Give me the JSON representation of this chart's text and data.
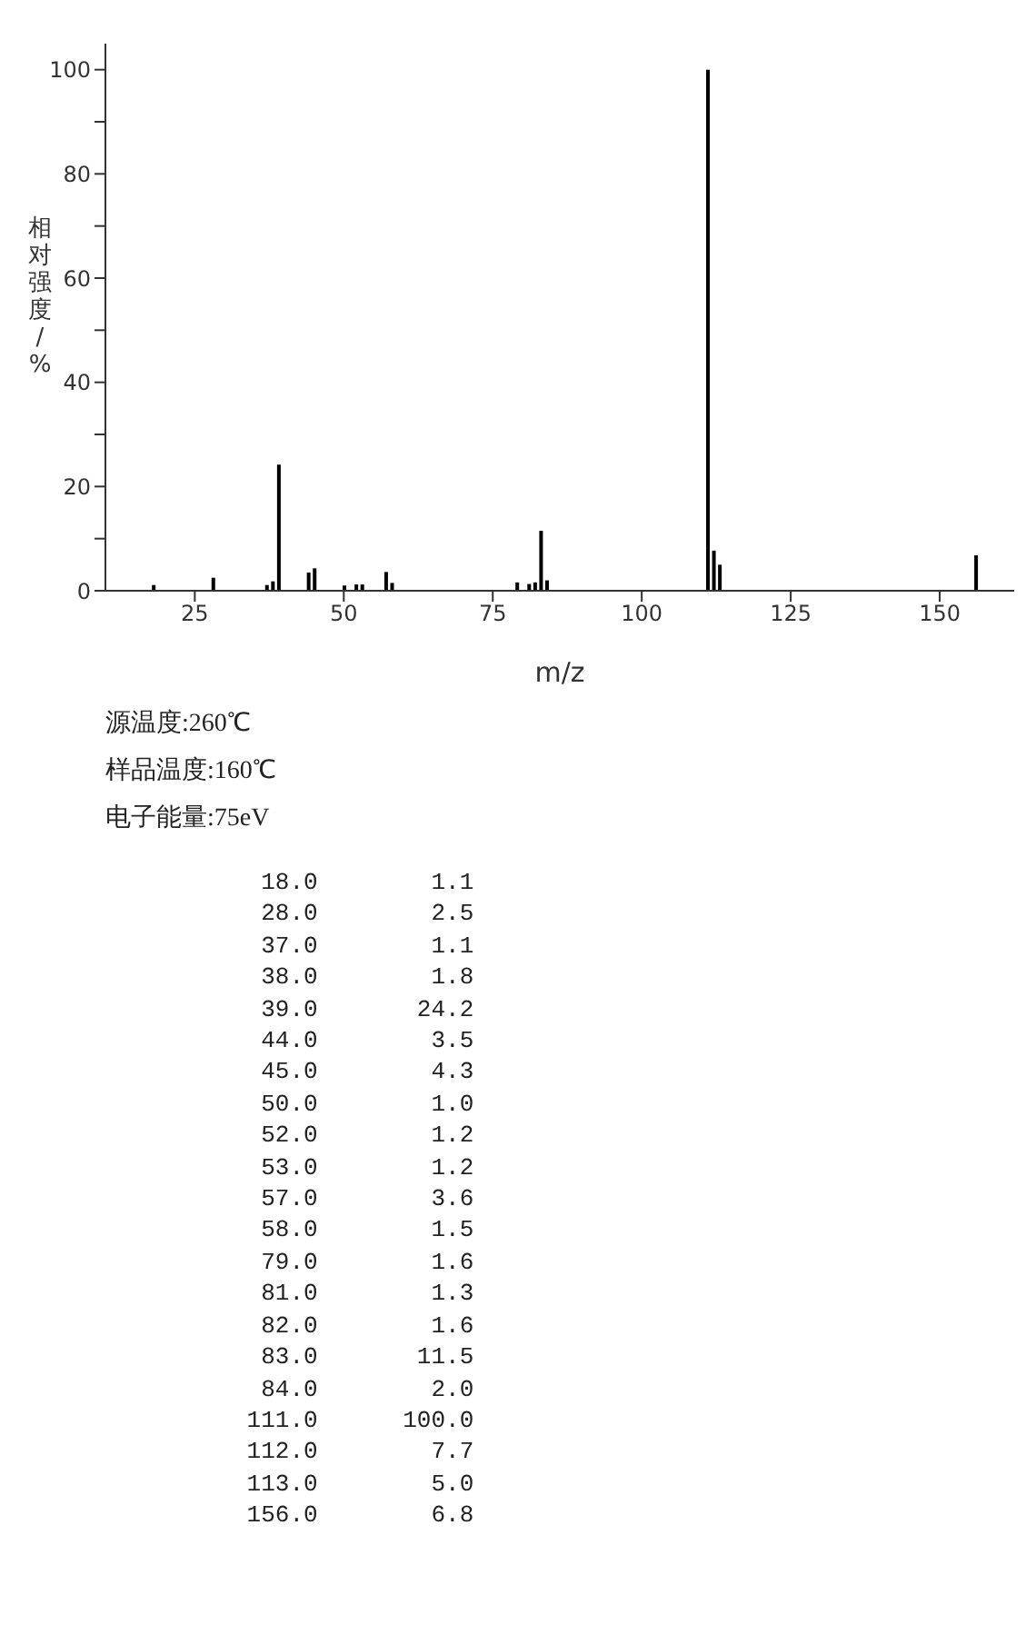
{
  "chart_data": {
    "type": "bar",
    "x": [
      18,
      28,
      37,
      38,
      39,
      44,
      45,
      50,
      52,
      53,
      57,
      58,
      79,
      81,
      82,
      83,
      84,
      111,
      112,
      113,
      156
    ],
    "values": [
      1.1,
      2.5,
      1.1,
      1.8,
      24.2,
      3.5,
      4.3,
      1.0,
      1.2,
      1.2,
      3.6,
      1.5,
      1.6,
      1.3,
      1.6,
      11.5,
      2.0,
      100.0,
      7.7,
      5.0,
      6.8
    ],
    "color": "#000000",
    "xlabel": "m/z",
    "ylabel": "相对强度/%",
    "xlim": [
      10,
      162.5
    ],
    "xticks": [
      25,
      50,
      75,
      100,
      125,
      150
    ],
    "ylim": [
      0,
      105
    ],
    "yticks": [
      0,
      {
        "value": 10,
        "label": null
      },
      20,
      {
        "value": 30,
        "label": null
      },
      40,
      {
        "value": 50,
        "label": null
      },
      60,
      {
        "value": 70,
        "label": null
      },
      80,
      {
        "value": 90,
        "label": null
      },
      100
    ],
    "grid": false,
    "legend": false,
    "annotations": [
      "源温度:260℃",
      "样品温度:160℃",
      "电子能量:75eV",
      "18.0 1.1",
      "28.0 2.5",
      "37.0 1.1",
      "38.0 1.8",
      "39.0 24.2",
      "44.0 3.5",
      "45.0 4.3",
      "50.0 1.0",
      "52.0 1.2",
      "53.0 1.2",
      "57.0 3.6",
      "58.0 1.5",
      "79.0 1.6",
      "81.0 1.3",
      "82.0 1.6",
      "83.0 11.5",
      "84.0 2.0",
      "111.0 100.0",
      "112.0 7.7",
      "113.0 5.0",
      "156.0 6.8"
    ]
  }
}
